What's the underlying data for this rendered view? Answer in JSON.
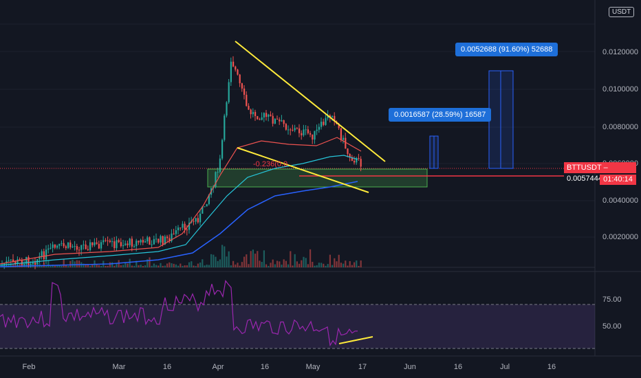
{
  "symbol_tag": "BTTUSDT",
  "last_price": "0.0057444",
  "countdown": "01:40:14",
  "currency": "USDT",
  "fib_label": "-0.236(0.0",
  "projections": [
    {
      "label": "0.0016587 (28.59%) 16587"
    },
    {
      "label": "0.0052688 (91.60%) 52688"
    }
  ],
  "price_scale": [
    "0.0120000",
    "0.0100000",
    "0.0080000",
    "0.0060000",
    "0.0040000",
    "0.0020000"
  ],
  "rsi_scale": [
    "75.00",
    "50.00"
  ],
  "time_axis": [
    "Feb",
    "Mar",
    "16",
    "Apr",
    "16",
    "May",
    "17",
    "Jun",
    "16",
    "Jul",
    "16"
  ],
  "colors": {
    "bg": "#131722",
    "up": "#26a69a",
    "down": "#ef5350",
    "trend": "#ffeb3b",
    "rsi": "#9c27b0",
    "ema_slow": "#2962ff"
  },
  "chart_data": {
    "type": "candlestick",
    "title": "",
    "ylim": [
      0,
      0.0135
    ],
    "approx_close_path": [
      {
        "x": "Feb 1",
        "y": 0.0002
      },
      {
        "x": "Feb 10",
        "y": 0.0004
      },
      {
        "x": "Feb 15",
        "y": 0.0011
      },
      {
        "x": "Mar 1",
        "y": 0.0013
      },
      {
        "x": "Mar 16",
        "y": 0.0015
      },
      {
        "x": "Mar 26",
        "y": 0.0028
      },
      {
        "x": "Apr 1",
        "y": 0.0055
      },
      {
        "x": "Apr 5",
        "y": 0.0115
      },
      {
        "x": "Apr 10",
        "y": 0.0085
      },
      {
        "x": "Apr 16",
        "y": 0.0082
      },
      {
        "x": "Apr 25",
        "y": 0.0075
      },
      {
        "x": "May 1",
        "y": 0.0072
      },
      {
        "x": "May 10",
        "y": 0.0085
      },
      {
        "x": "May 14",
        "y": 0.0062
      },
      {
        "x": "May 17",
        "y": 0.0057
      }
    ],
    "rsi_levels": [
      75,
      50,
      30
    ]
  }
}
